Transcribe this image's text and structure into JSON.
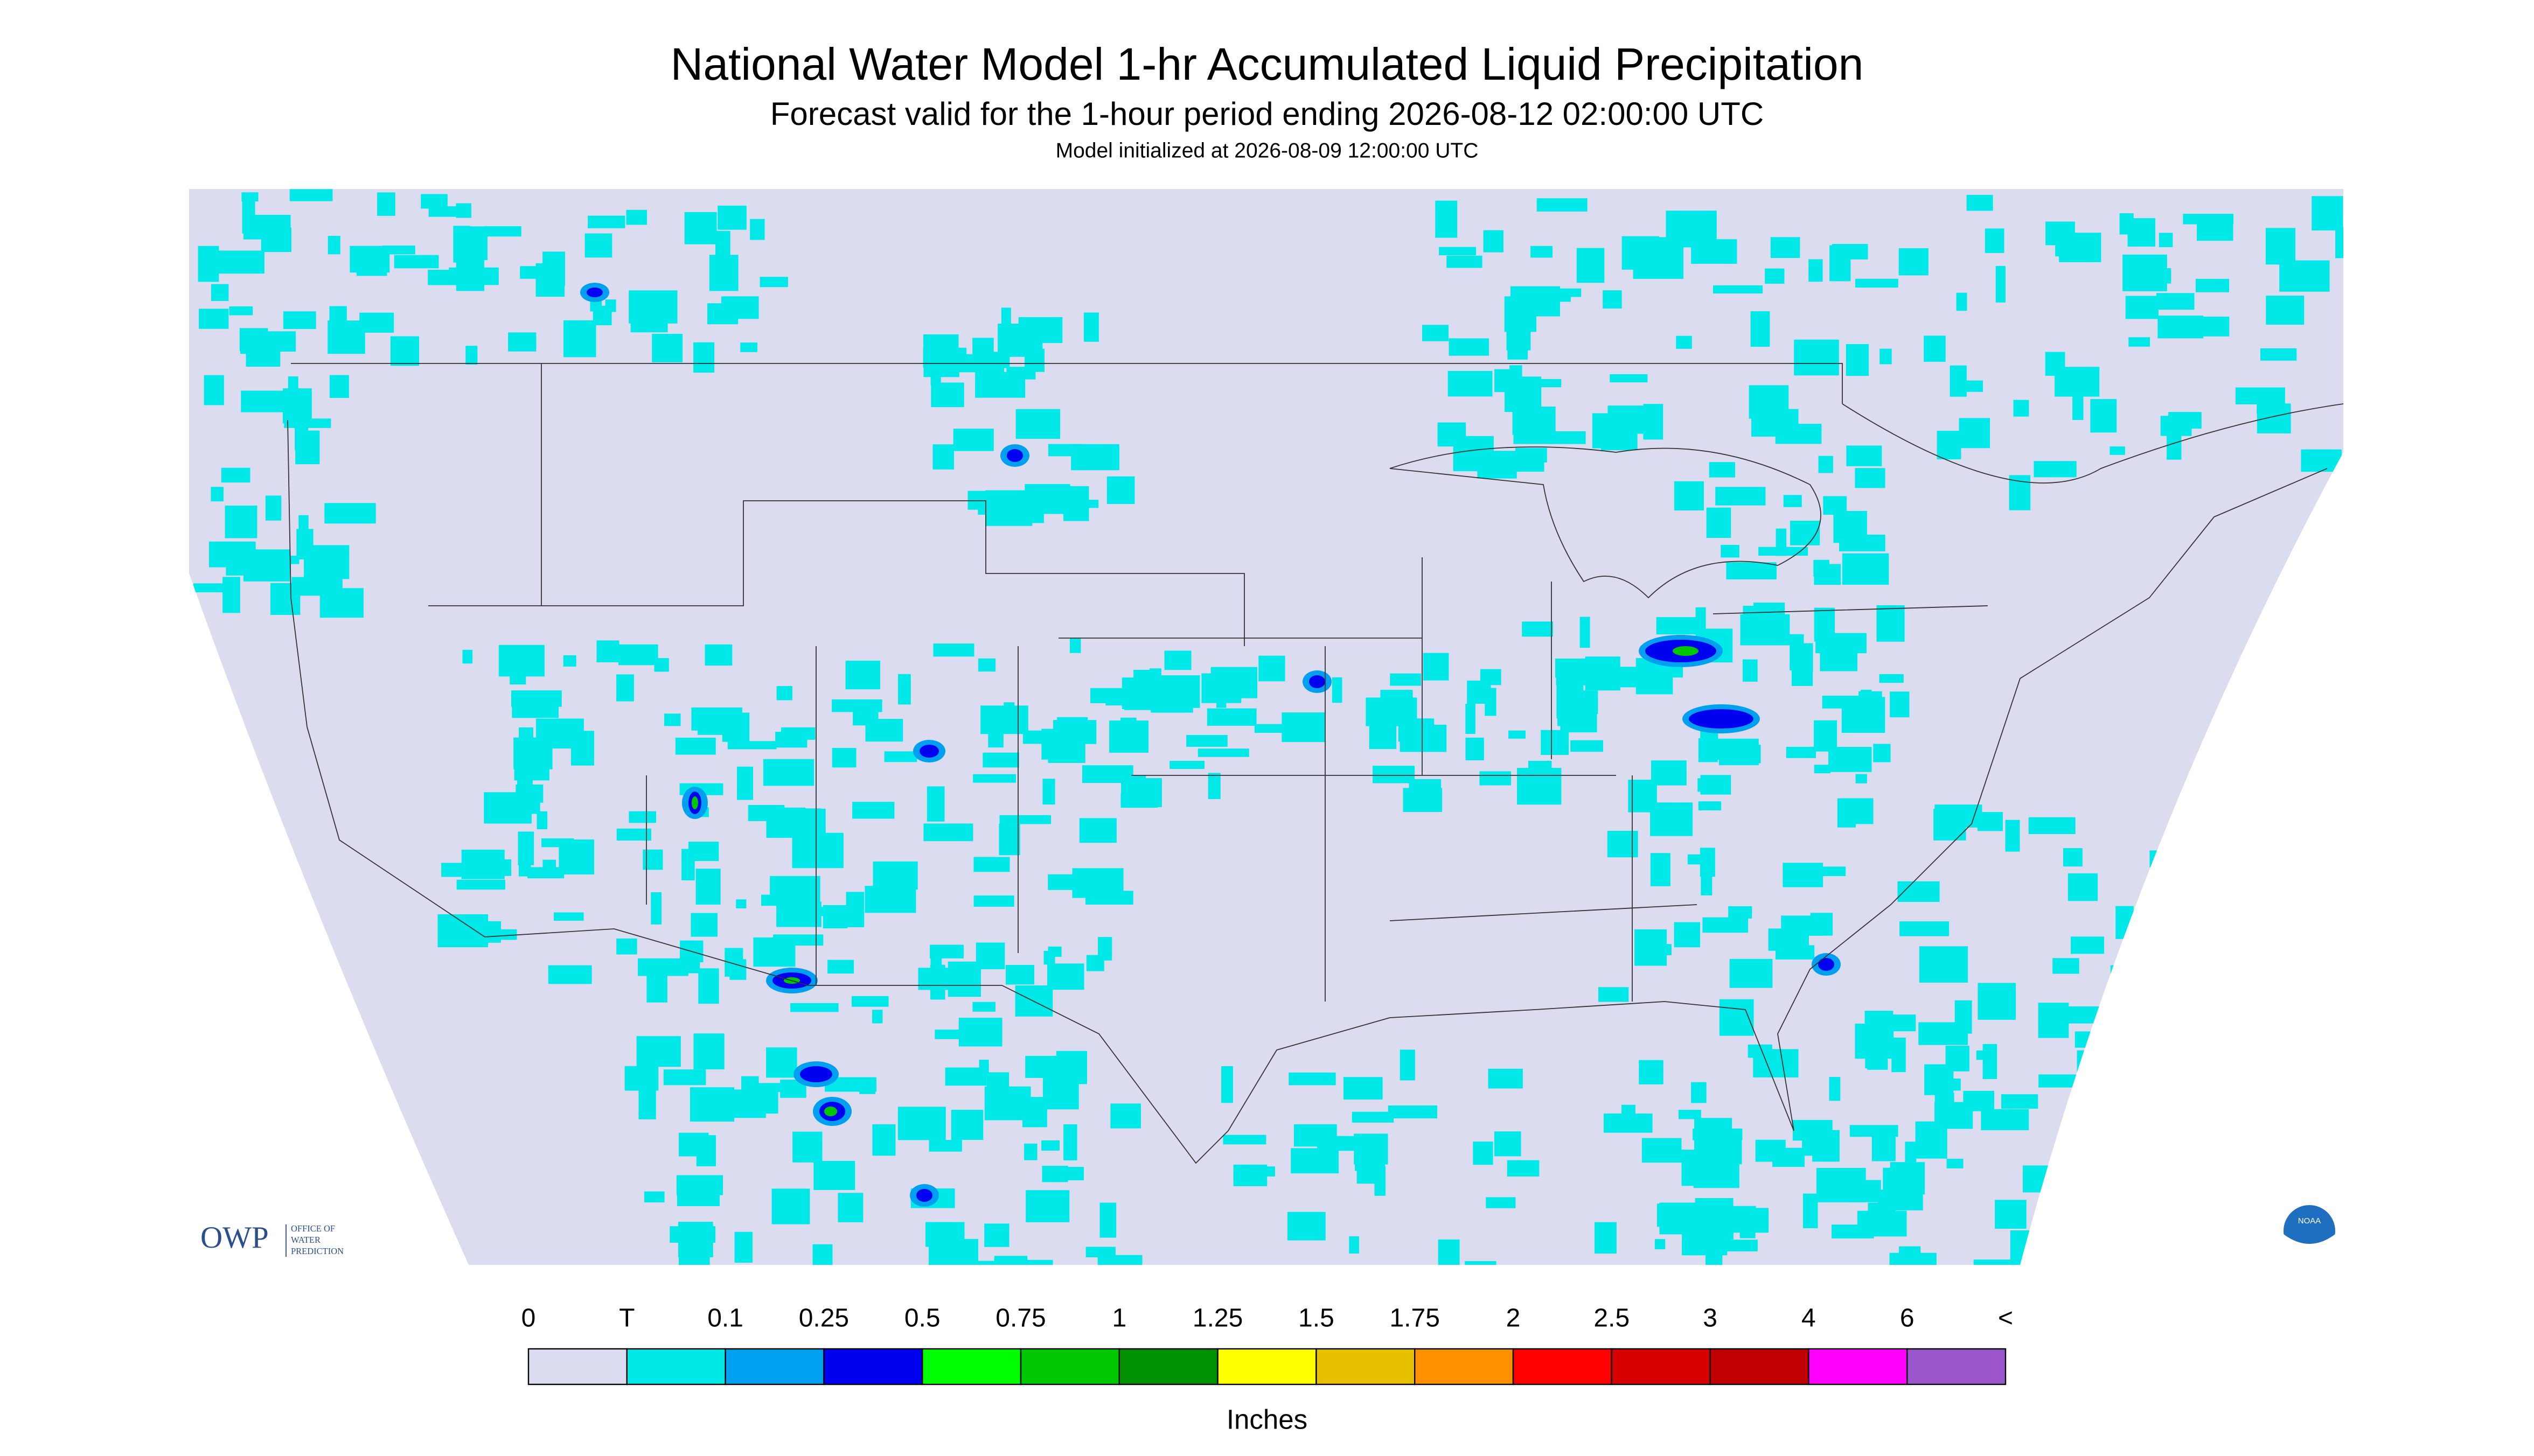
{
  "header": {
    "title": "National Water Model 1-hr Accumulated Liquid Precipitation",
    "subtitle": "Forecast valid for the 1-hour period ending 2026-08-12 02:00:00 UTC",
    "note": "Model initialized at 2026-08-09 12:00:00 UTC"
  },
  "logos": {
    "owp": "OWP",
    "owp_text": [
      "OFFICE OF",
      "WATER",
      "PREDICTION"
    ],
    "noaa": "NOAA"
  },
  "colorbar": {
    "labels": [
      "0",
      "T",
      "0.1",
      "0.25",
      "0.5",
      "0.75",
      "1",
      "1.25",
      "1.5",
      "1.75",
      "2",
      "2.5",
      "3",
      "4",
      "6",
      "<"
    ],
    "colors": [
      "#dcdcf0",
      "#00e8e8",
      "#00a0f0",
      "#0000f0",
      "#00ff00",
      "#00c800",
      "#009000",
      "#ffff00",
      "#e7c000",
      "#ff9000",
      "#ff0000",
      "#d60000",
      "#c00000",
      "#ff00ff",
      "#9955c9"
    ],
    "unit": "Inches"
  }
}
